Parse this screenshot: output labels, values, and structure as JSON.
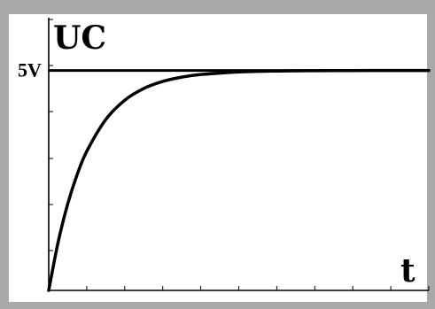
{
  "chart_data": {
    "type": "line",
    "title": "",
    "ylabel": "UC",
    "xlabel": "t",
    "reference_label": "5V",
    "reference_value": 5,
    "grid": false,
    "legend": "none",
    "series_color": "#000000",
    "series": [
      {
        "x": [
          0,
          0.25,
          0.5,
          0.75,
          1,
          1.5,
          2,
          2.5,
          3,
          3.5,
          4,
          5,
          6,
          7,
          8,
          9,
          10
        ],
        "y": [
          0,
          1.106,
          1.967,
          2.638,
          3.161,
          3.884,
          4.323,
          4.59,
          4.751,
          4.849,
          4.908,
          4.966,
          4.988,
          4.995,
          4.998,
          4.999,
          5.0
        ]
      }
    ],
    "xlim": [
      0,
      10
    ],
    "ylim": [
      0,
      6.2
    ]
  }
}
